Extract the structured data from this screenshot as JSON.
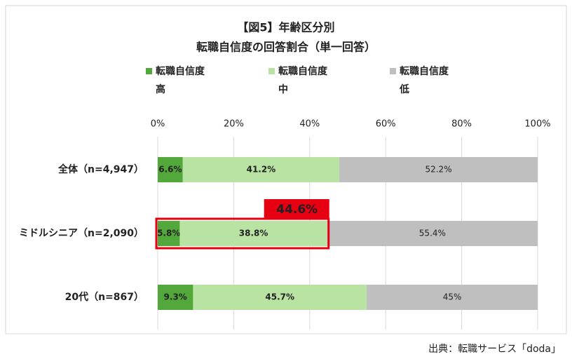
{
  "chart_data": {
    "type": "stacked-bar-horizontal",
    "title": "【図5】年齢区分別",
    "subtitle": "転職自信度の回答割合（単一回答）",
    "categories": [
      "全体（n=4,947）",
      "ミドルシニア（n=2,090）",
      "20代（n=867）"
    ],
    "series": [
      {
        "name": "転職自信度高",
        "color": "#53a83b",
        "values": [
          6.6,
          5.8,
          9.3
        ],
        "value_labels": [
          "6.6%",
          "5.8%",
          "9.3%"
        ]
      },
      {
        "name": "転職自信度中",
        "color": "#b9e3a3",
        "values": [
          41.2,
          38.8,
          45.7
        ],
        "value_labels": [
          "41.2%",
          "38.8%",
          "45.7%"
        ]
      },
      {
        "name": "転職自信度低",
        "color": "#bfbfbf",
        "values": [
          52.2,
          55.4,
          45
        ],
        "value_labels": [
          "52.2%",
          "55.4%",
          "45%"
        ]
      }
    ],
    "xlim": [
      0,
      100
    ],
    "xticks": [
      {
        "value": 0,
        "label": "0%"
      },
      {
        "value": 20,
        "label": "20%"
      },
      {
        "value": 40,
        "label": "40%"
      },
      {
        "value": 60,
        "label": "60%"
      },
      {
        "value": 80,
        "label": "80%"
      },
      {
        "value": 100,
        "label": "100%"
      }
    ],
    "grid": true,
    "annotation": "44.6%",
    "source": "出典：転職サービス「doda」"
  }
}
